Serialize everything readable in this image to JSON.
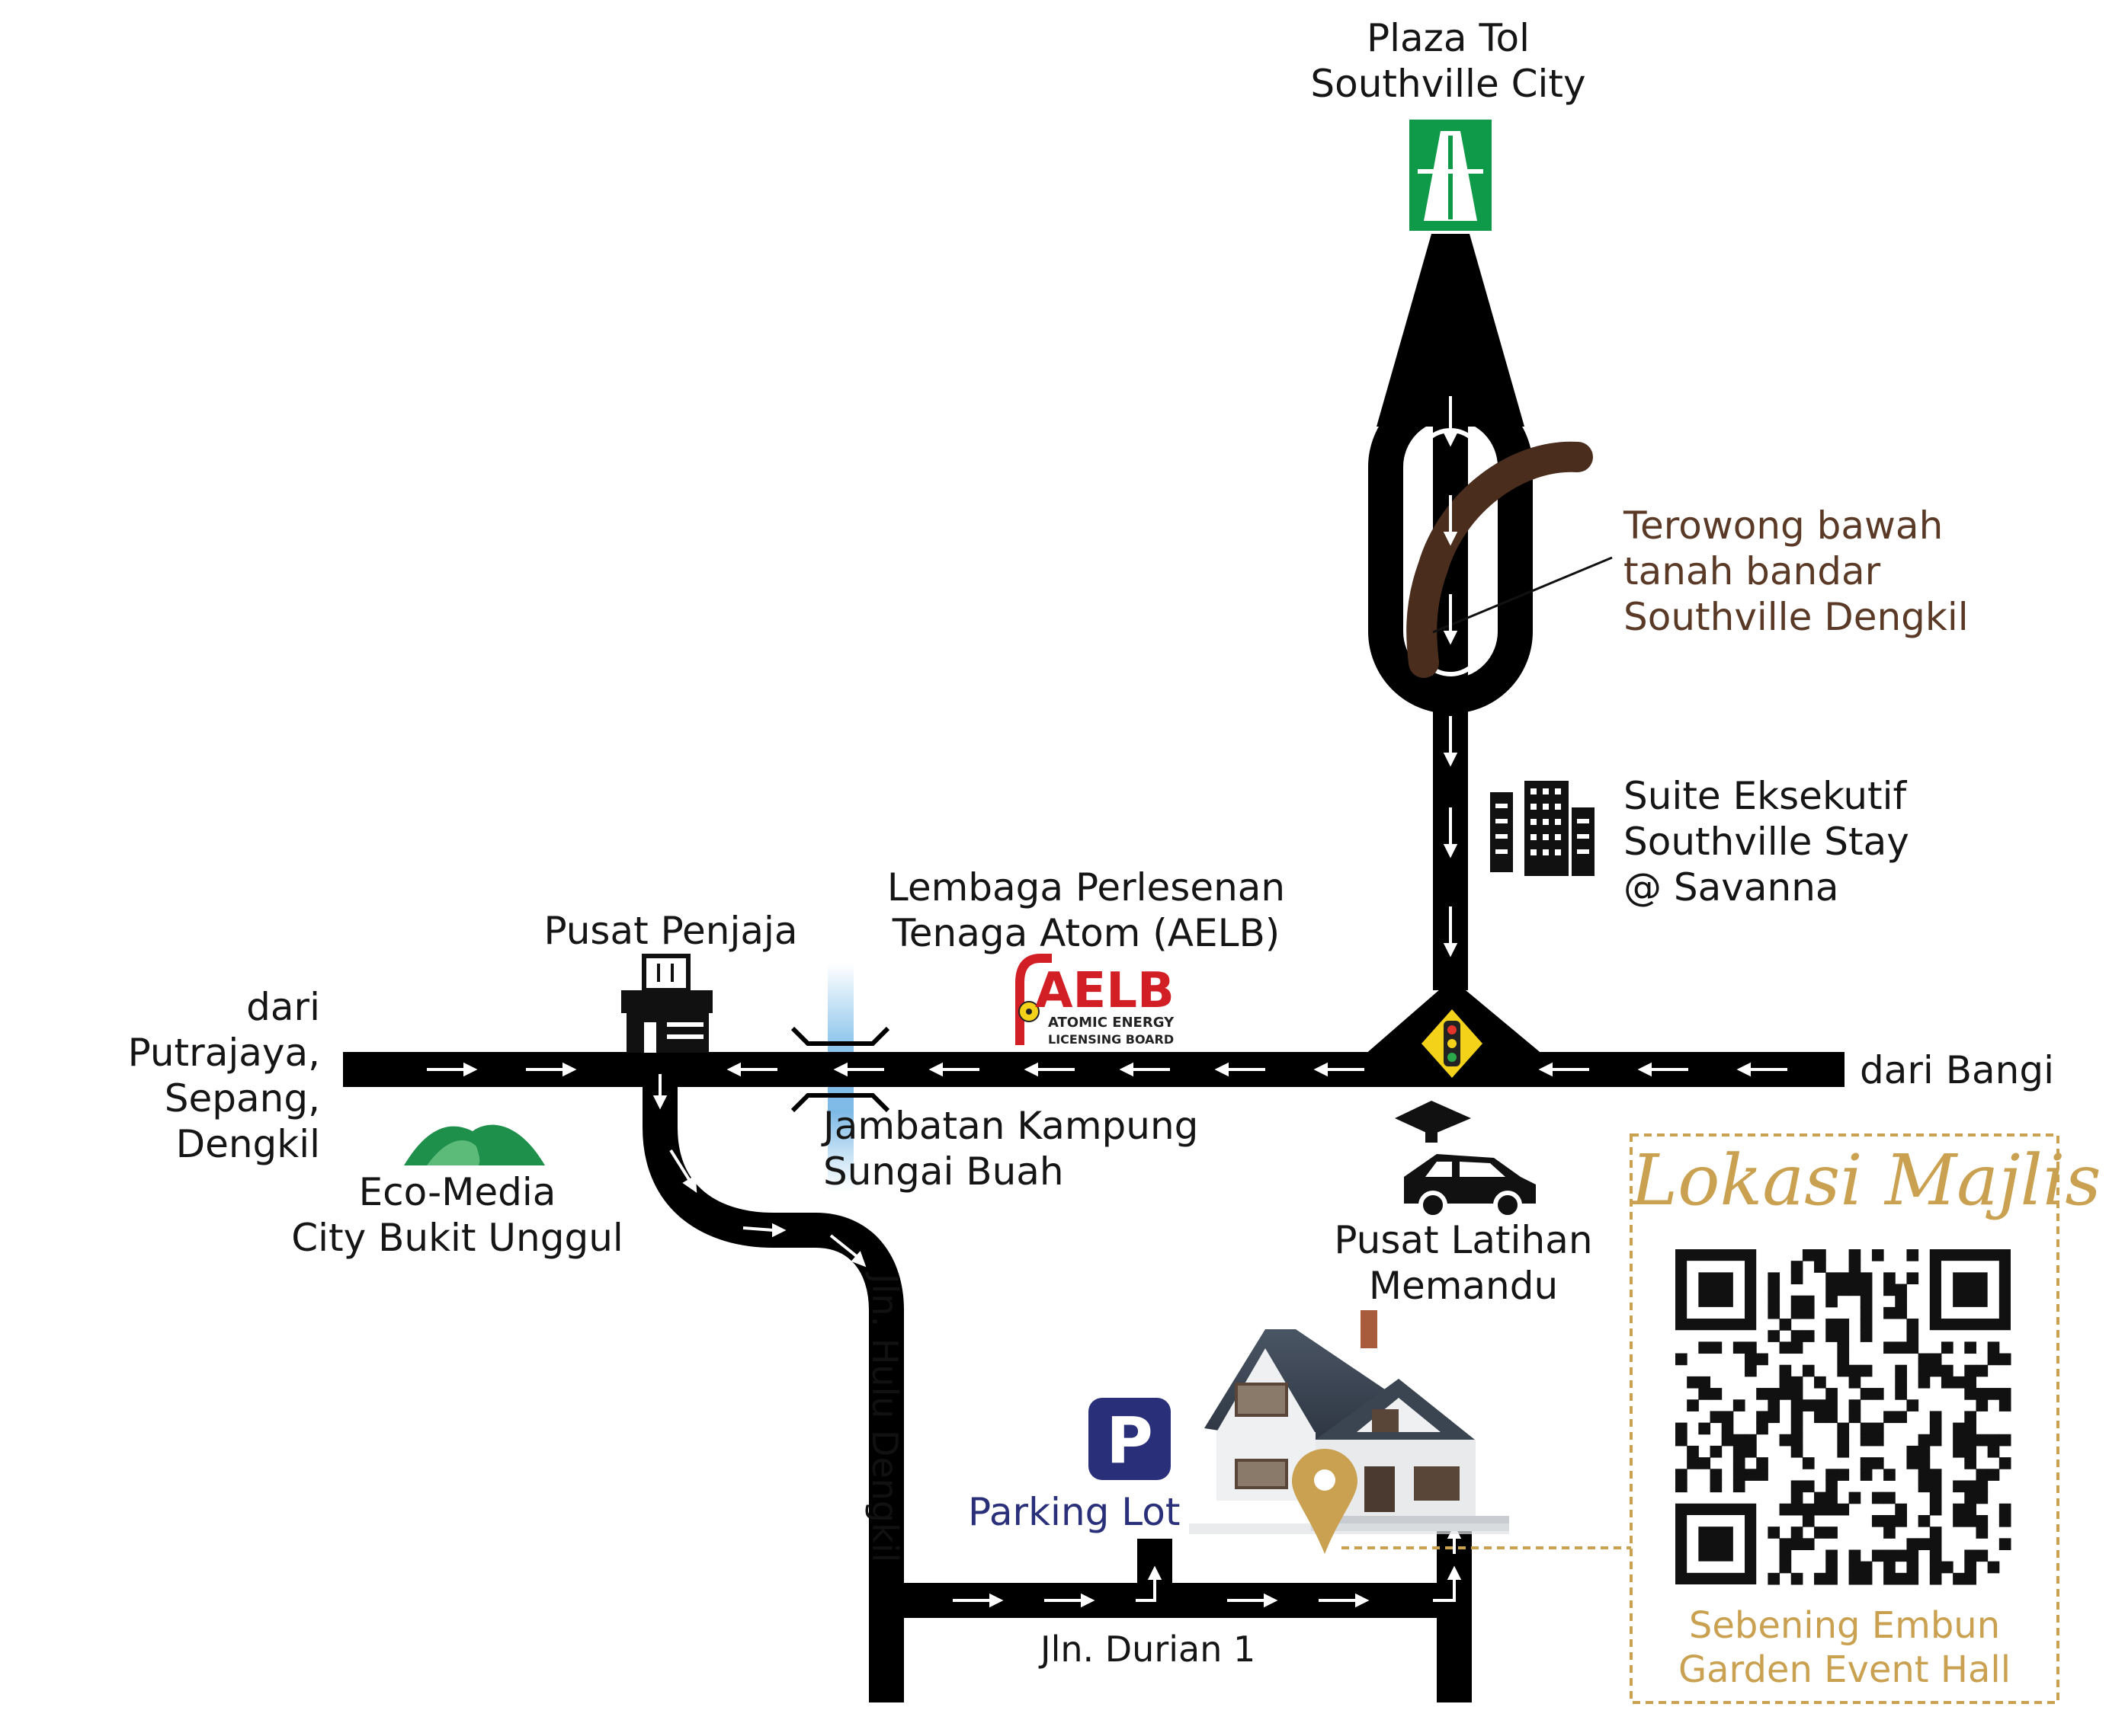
{
  "labels": {
    "toll_plaza": [
      "Plaza Tol",
      "Southville City"
    ],
    "tunnel": [
      "Terowong bawah",
      "tanah bandar",
      "Southville Dengkil"
    ],
    "suite": [
      "Suite Eksekutif",
      "Southville Stay",
      "@ Savanna"
    ],
    "aelb": [
      "Lembaga Perlesenan",
      "Tenaga Atom (AELB)"
    ],
    "hawker": [
      "Pusat Penjaja"
    ],
    "from_west": [
      "dari",
      "Putrajaya,",
      "Sepang,",
      "Dengkil"
    ],
    "from_east": [
      "dari Bangi"
    ],
    "bridge": [
      "Jambatan Kampung",
      "Sungai Buah"
    ],
    "eco_media": [
      "Eco-Media",
      "City Bukit Unggul"
    ],
    "driving_school": [
      "Pusat Latihan",
      "Memandu"
    ],
    "road_hulu_dengkil": "Jln. Hulu Dengkil",
    "road_durian": "Jln. Durian 1",
    "parking": "Parking Lot",
    "parking_sign": "P"
  },
  "aelb_logo": {
    "letters": "AELB",
    "line1": "ATOMIC ENERGY",
    "line2": "LICENSING BOARD"
  },
  "venue_card": {
    "title": "Lokasi Majlis",
    "venue_name": [
      "Sebening Embun",
      "Garden Event Hall"
    ]
  },
  "colors": {
    "road": "#000000",
    "tunnel": "#4a2d1d",
    "toll_sign": "#0e9a48",
    "accent_gold": "#c9a151",
    "parking_sign": "#2a2f7a",
    "river": "#8fc6ec",
    "hill_dark": "#1f8f4c",
    "hill_light": "#5dbb7a"
  },
  "icons": {
    "toll": "highway-toll-icon",
    "suite": "office-building-icon",
    "hawker": "food-stall-icon",
    "traffic_light": "traffic-light-icon",
    "driving_school": "driving-school-car-icon",
    "eco": "green-hills-icon",
    "house": "house-icon",
    "pin": "location-pin-icon",
    "parking": "parking-icon",
    "qr": "qr-code-icon"
  }
}
